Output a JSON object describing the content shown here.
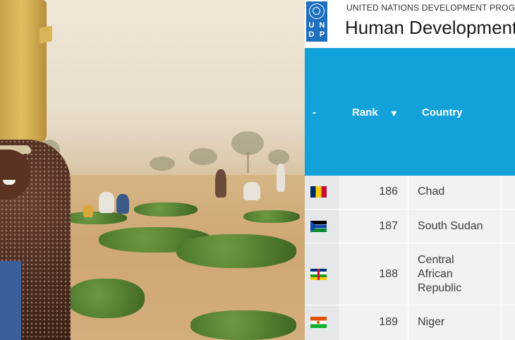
{
  "header": {
    "logo_letters": [
      "U",
      "N",
      "D",
      "P"
    ],
    "org_name": "UNITED NATIONS DEVELOPMENT PROGRAMME",
    "title": "Human Development Reports"
  },
  "table": {
    "columns": [
      "-",
      "Rank",
      "Country"
    ],
    "sort_indicator": "▼",
    "rows": [
      {
        "flag": "flag-chad-icon",
        "rank": "186",
        "country": "Chad"
      },
      {
        "flag": "flag-south-sudan-icon",
        "rank": "187",
        "country": "South Sudan"
      },
      {
        "flag": "flag-central-african-republic-icon",
        "rank": "188",
        "country": "Central African Republic"
      },
      {
        "flag": "flag-niger-icon",
        "rank": "189",
        "country": "Niger"
      }
    ]
  },
  "colors": {
    "header_blue": "#13a1d9",
    "logo_blue": "#1f6fbf",
    "row_bg": "#f1f2f4"
  }
}
